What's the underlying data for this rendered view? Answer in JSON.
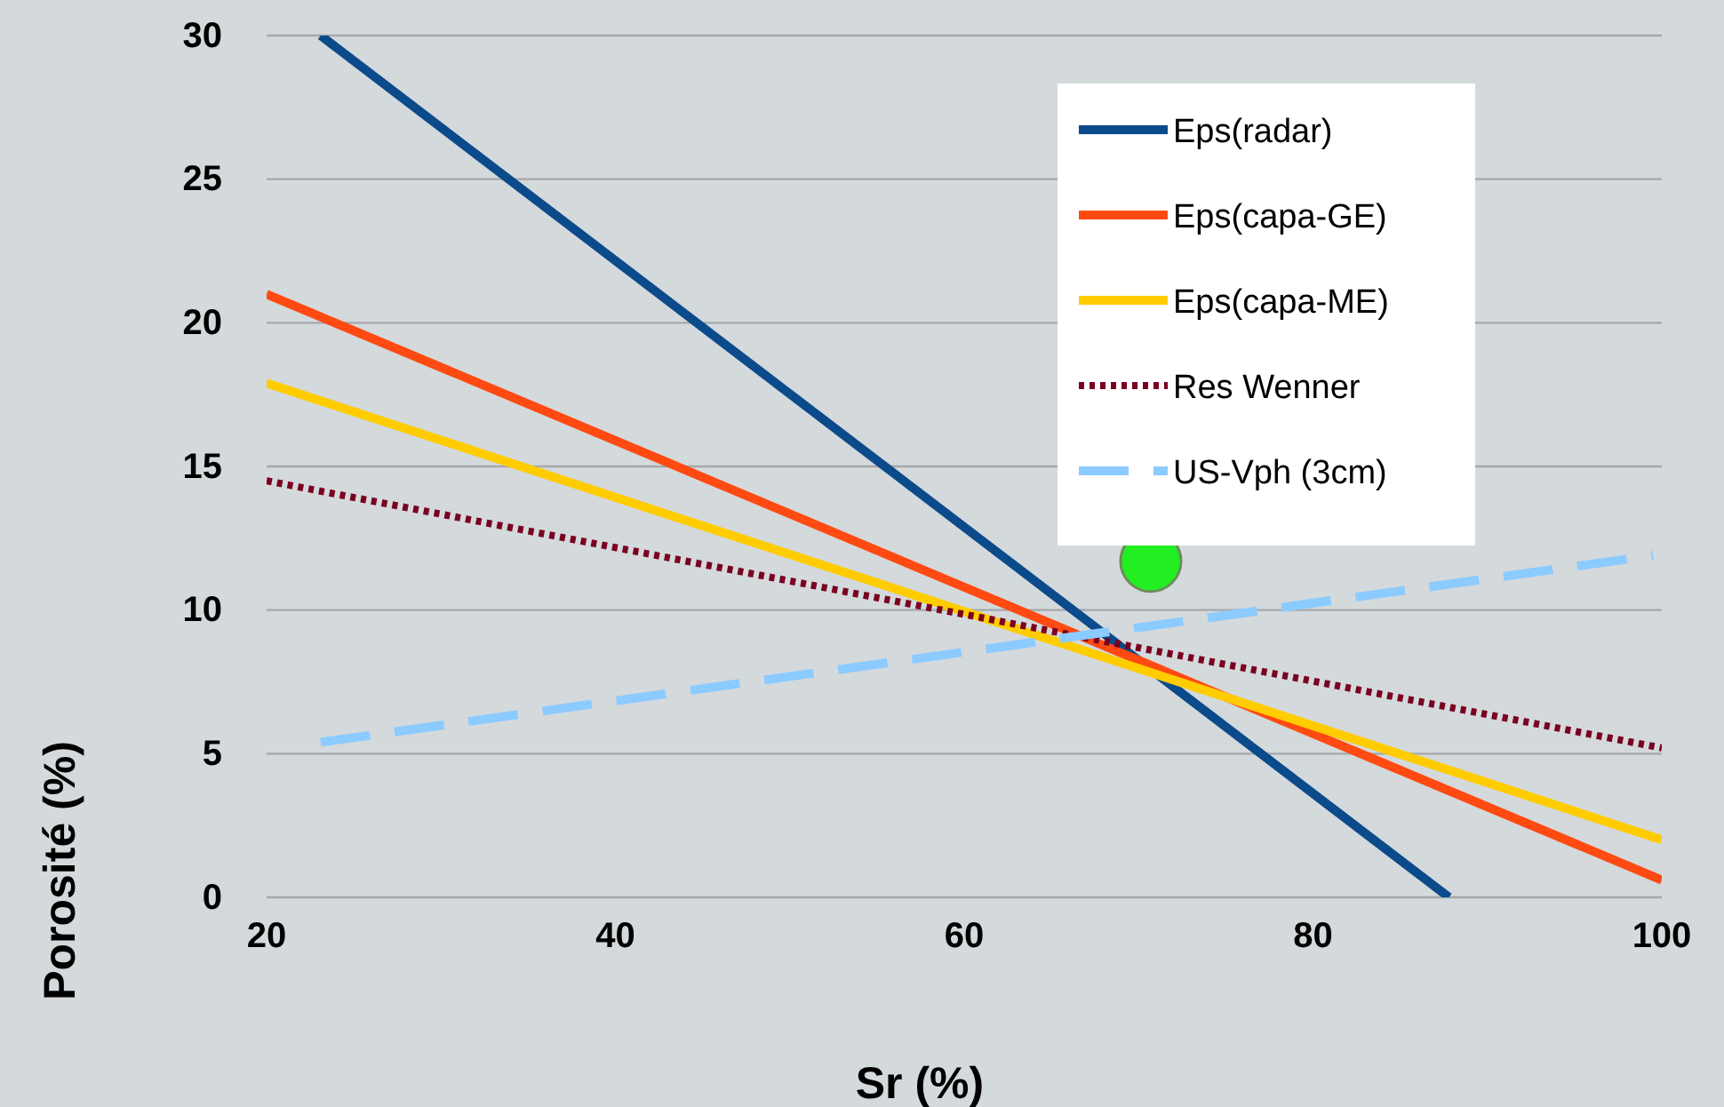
{
  "chart_data": {
    "type": "line",
    "xlabel": "Sr (%)",
    "ylabel": "Porosité (%)",
    "xlim": [
      20,
      100
    ],
    "xticks": [
      20,
      40,
      60,
      80,
      100
    ],
    "ylim": [
      0,
      30
    ],
    "yticks": [
      0,
      5,
      10,
      15,
      20,
      25,
      30
    ],
    "grid": "y",
    "legend": "top right",
    "marker": "none",
    "series": [
      {
        "name": "Eps(radar)",
        "color": "#0b4a8b",
        "x": [
          23.1,
          87.8
        ],
        "values": [
          30,
          0
        ],
        "line_style": "solid"
      },
      {
        "name": "Eps(capa-GE)",
        "color": "#ff4a12",
        "x": [
          20,
          100
        ],
        "values": [
          21,
          0.6
        ],
        "line_style": "solid"
      },
      {
        "name": "Eps(capa-ME)",
        "color": "#ffcc00",
        "x": [
          20,
          100
        ],
        "values": [
          17.9,
          2.0
        ],
        "line_style": "solid"
      },
      {
        "name": "Res Wenner",
        "color": "#7a0020",
        "x": [
          20,
          100
        ],
        "values": [
          14.5,
          5.2
        ],
        "line_style": "dotted"
      },
      {
        "name": "US-Vph (3cm)",
        "color": "#8ccbff",
        "x": [
          23.1,
          99.5
        ],
        "values": [
          5.4,
          11.9
        ],
        "line_style": "dashed"
      },
      {
        "type": "scatter",
        "color": "#22ee22",
        "x": [
          70.7
        ],
        "values": [
          11.7
        ],
        "marker": "circle"
      }
    ]
  }
}
